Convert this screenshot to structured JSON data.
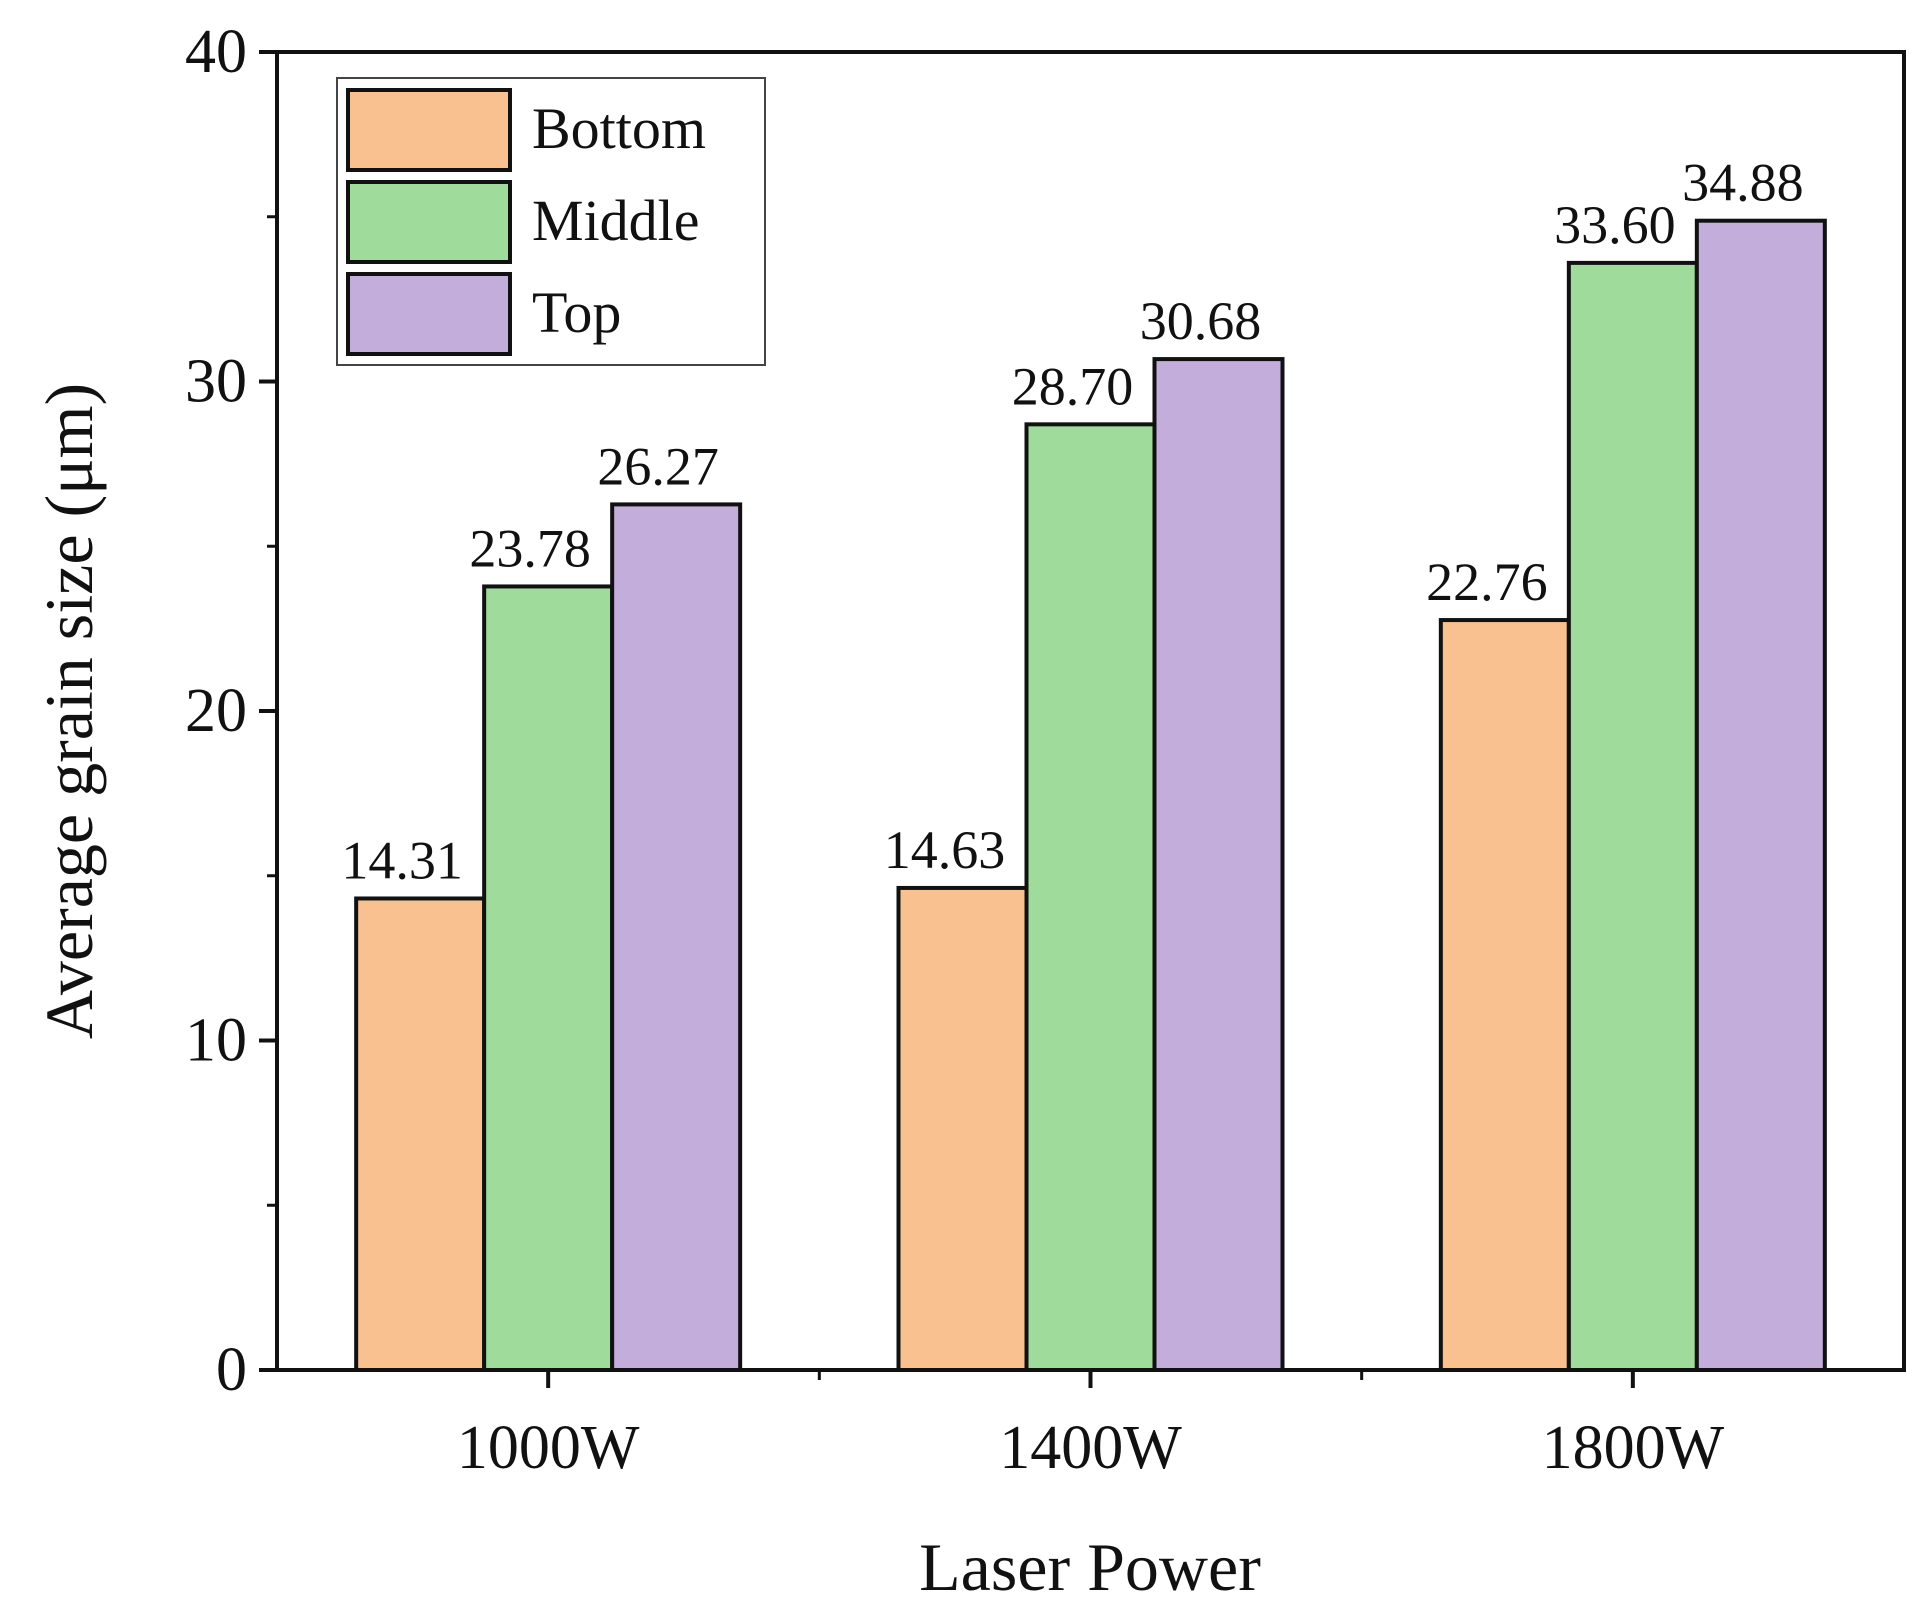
{
  "chart_data": {
    "type": "bar",
    "title": "",
    "xlabel": "Laser Power",
    "ylabel": "Average grain size (μm)",
    "ylim": [
      0,
      40
    ],
    "yticks": [
      0,
      10,
      20,
      30,
      40
    ],
    "categories": [
      "1000W",
      "1400W",
      "1800W"
    ],
    "series": [
      {
        "name": "Bottom",
        "color": "#f9c18f",
        "values": [
          14.31,
          14.63,
          22.76
        ],
        "labels": [
          "14.31",
          "14.63",
          "22.76"
        ]
      },
      {
        "name": "Middle",
        "color": "#9fdb9b",
        "values": [
          23.78,
          28.7,
          33.6
        ],
        "labels": [
          "23.78",
          "28.70",
          "33.60"
        ]
      },
      {
        "name": "Top",
        "color": "#c2addb",
        "values": [
          26.27,
          30.68,
          34.88
        ],
        "labels": [
          "26.27",
          "30.68",
          "34.88"
        ]
      }
    ],
    "legend_position": "top-left",
    "grid": false
  }
}
